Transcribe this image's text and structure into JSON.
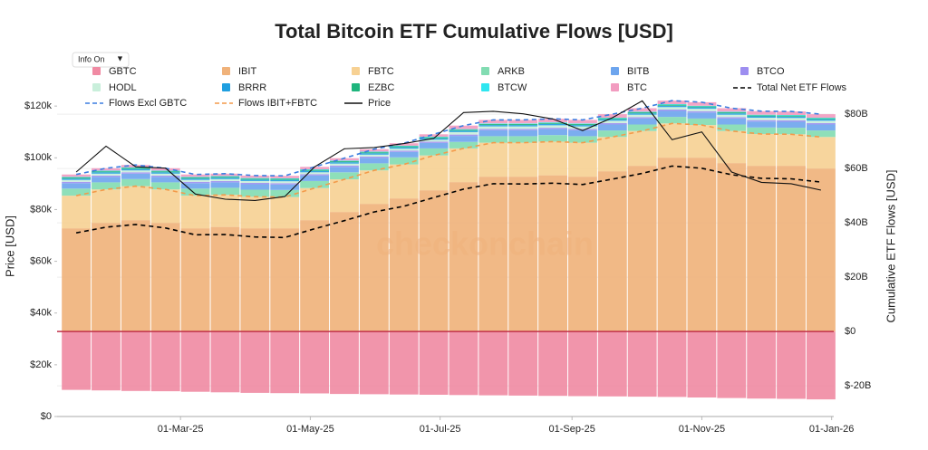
{
  "chart_data": {
    "type": "stacked-bar-line",
    "title": "Total Bitcoin ETF Cumulative Flows [USD]",
    "info_button": "Info On",
    "watermark": "checkonchain",
    "y_label": "Price [USD]",
    "y2_label": "Cumulative ETF Flows [USD]",
    "x": [
      "2025-01-11",
      "2025-01-25",
      "2025-02-08",
      "2025-02-22",
      "2025-03-08",
      "2025-03-22",
      "2025-04-05",
      "2025-04-19",
      "2025-05-03",
      "2025-05-17",
      "2025-05-31",
      "2025-06-14",
      "2025-06-28",
      "2025-07-12",
      "2025-07-26",
      "2025-08-09",
      "2025-08-23",
      "2025-09-06",
      "2025-09-20",
      "2025-10-04",
      "2025-10-18",
      "2025-11-01",
      "2025-11-15",
      "2025-11-29",
      "2025-12-13",
      "2025-12-27"
    ],
    "xlim": [
      "2025-01-02",
      "2026-01-02"
    ],
    "xticks": [
      {
        "value": "2025-03-01",
        "label": "01-Mar-25"
      },
      {
        "value": "2025-05-01",
        "label": "01-May-25"
      },
      {
        "value": "2025-07-01",
        "label": "01-Jul-25"
      },
      {
        "value": "2025-09-01",
        "label": "01-Sep-25"
      },
      {
        "value": "2025-11-01",
        "label": "01-Nov-25"
      },
      {
        "value": "2026-01-01",
        "label": "01-Jan-26"
      }
    ],
    "ylim": [
      0,
      126000
    ],
    "yticks": [
      {
        "value": 0,
        "label": "$0"
      },
      {
        "value": 20000,
        "label": "$20k"
      },
      {
        "value": 40000,
        "label": "$40k"
      },
      {
        "value": 60000,
        "label": "$60k"
      },
      {
        "value": 80000,
        "label": "$80k"
      },
      {
        "value": 100000,
        "label": "$100k"
      },
      {
        "value": 120000,
        "label": "$120k"
      }
    ],
    "y2lim": [
      -31.3,
      88.7
    ],
    "y2ticks": [
      {
        "value": -20,
        "label": "$-20B"
      },
      {
        "value": 0,
        "label": "$0"
      },
      {
        "value": 20,
        "label": "$20B"
      },
      {
        "value": 40,
        "label": "$40B"
      },
      {
        "value": 60,
        "label": "$60B"
      },
      {
        "value": 80,
        "label": "$80B"
      }
    ],
    "grid": true,
    "series": [
      {
        "name": "GBTC",
        "color": "#f08aa3",
        "kind": "bar",
        "axis": "y2",
        "values": [
          -21.5,
          -21.7,
          -21.9,
          -22.0,
          -22.2,
          -22.4,
          -22.6,
          -22.7,
          -22.8,
          -23.0,
          -23.1,
          -23.2,
          -23.3,
          -23.4,
          -23.5,
          -23.6,
          -23.7,
          -23.8,
          -23.9,
          -24.0,
          -24.1,
          -24.3,
          -24.5,
          -24.7,
          -24.8,
          -25.0
        ]
      },
      {
        "name": "IBIT",
        "color": "#f0b27a",
        "kind": "bar",
        "axis": "y2",
        "values": [
          38,
          40,
          41,
          40,
          38,
          38.5,
          38,
          38,
          41,
          44,
          47,
          49,
          52,
          55,
          57,
          57,
          57.5,
          57,
          59,
          61,
          64,
          64,
          62,
          61,
          61,
          60
        ]
      },
      {
        "name": "FBTC",
        "color": "#f7d193",
        "kind": "bar",
        "axis": "y2",
        "values": [
          12,
          12.3,
          12.5,
          12.3,
          12,
          11.8,
          11.6,
          11.5,
          11.8,
          12,
          12.3,
          12.5,
          12.8,
          12.4,
          12.5,
          12.5,
          12.4,
          12.5,
          12.6,
          12.8,
          12.6,
          12,
          11.8,
          11.7,
          11.6,
          11.6
        ]
      },
      {
        "name": "ARKB",
        "color": "#82dcb2",
        "kind": "bar",
        "axis": "y2",
        "values": [
          2.6,
          2.6,
          2.6,
          2.6,
          2.6,
          2.6,
          2.6,
          2.6,
          2.6,
          2.6,
          2.6,
          2.6,
          2.6,
          2.4,
          2.4,
          2.4,
          2.4,
          2.4,
          2.4,
          2.4,
          2.4,
          2.4,
          2.4,
          2.4,
          2.4,
          2.4
        ]
      },
      {
        "name": "BITB",
        "color": "#6da5ee",
        "kind": "bar",
        "axis": "y2",
        "values": [
          2.0,
          2.0,
          2.0,
          2.0,
          2.0,
          2.0,
          2.0,
          2.0,
          2.0,
          2.0,
          2.0,
          2.0,
          2.0,
          2.2,
          2.2,
          2.2,
          2.2,
          2.2,
          2.2,
          2.2,
          2.2,
          2.2,
          2.2,
          2.2,
          2.2,
          2.2
        ]
      },
      {
        "name": "BTCO",
        "color": "#9d8ef0",
        "kind": "bar",
        "axis": "y2",
        "values": [
          0.5,
          0.5,
          0.5,
          0.5,
          0.5,
          0.5,
          0.5,
          0.5,
          0.5,
          0.5,
          0.5,
          0.5,
          0.5,
          0.5,
          0.5,
          0.5,
          0.5,
          0.5,
          0.5,
          0.5,
          0.5,
          0.5,
          0.5,
          0.5,
          0.5,
          0.5
        ]
      },
      {
        "name": "HODL",
        "color": "#c9efdb",
        "kind": "bar",
        "axis": "y2",
        "values": [
          0.7,
          0.7,
          0.7,
          0.7,
          0.7,
          0.7,
          0.7,
          0.7,
          0.7,
          0.7,
          0.7,
          0.7,
          0.7,
          0.9,
          0.9,
          0.9,
          0.9,
          0.9,
          0.9,
          0.9,
          0.9,
          0.9,
          0.9,
          0.9,
          0.9,
          0.9
        ]
      },
      {
        "name": "BRRR",
        "color": "#1f9fe0",
        "kind": "bar",
        "axis": "y2",
        "values": [
          0.5,
          0.5,
          0.5,
          0.5,
          0.5,
          0.5,
          0.5,
          0.5,
          0.5,
          0.5,
          0.5,
          0.5,
          0.5,
          0.5,
          0.5,
          0.5,
          0.5,
          0.5,
          0.5,
          0.5,
          0.5,
          0.5,
          0.5,
          0.5,
          0.5,
          0.5
        ]
      },
      {
        "name": "EZBC",
        "color": "#1fb57d",
        "kind": "bar",
        "axis": "y2",
        "values": [
          0.4,
          0.4,
          0.4,
          0.4,
          0.4,
          0.4,
          0.4,
          0.4,
          0.4,
          0.4,
          0.4,
          0.4,
          0.4,
          0.4,
          0.4,
          0.4,
          0.4,
          0.4,
          0.4,
          0.4,
          0.4,
          0.4,
          0.4,
          0.4,
          0.4,
          0.4
        ]
      },
      {
        "name": "BTCW",
        "color": "#2fe6f0",
        "kind": "bar",
        "axis": "y2",
        "values": [
          0.2,
          0.2,
          0.2,
          0.2,
          0.2,
          0.2,
          0.2,
          0.2,
          0.2,
          0.2,
          0.2,
          0.2,
          0.2,
          0.2,
          0.2,
          0.2,
          0.2,
          0.2,
          0.2,
          0.2,
          0.2,
          0.2,
          0.2,
          0.2,
          0.2,
          0.2
        ]
      },
      {
        "name": "BTC",
        "color": "#f29cc0",
        "kind": "bar",
        "axis": "y2",
        "values": [
          0.9,
          0.9,
          0.9,
          0.9,
          0.9,
          0.9,
          0.9,
          0.9,
          0.9,
          0.9,
          0.9,
          0.9,
          0.9,
          1.3,
          1.3,
          1.3,
          1.3,
          1.3,
          1.3,
          1.3,
          1.3,
          1.3,
          1.3,
          1.3,
          1.3,
          1.3
        ]
      },
      {
        "name": "Total Net ETF Flows",
        "color": "#000000",
        "kind": "line",
        "dash": true,
        "axis": "y2",
        "values": [
          36.3,
          38.4,
          39.4,
          38.1,
          35.6,
          35.7,
          34.8,
          34.6,
          37.8,
          40.8,
          44,
          46.1,
          49.3,
          52.4,
          54.4,
          54.3,
          54.6,
          54.1,
          56.1,
          58.2,
          60.9,
          60.1,
          57.7,
          56.4,
          56.2,
          55
        ]
      },
      {
        "name": "Flows Excl GBTC",
        "color": "#3b7de0",
        "kind": "line",
        "dash": true,
        "axis": "y2",
        "values": [
          57.8,
          60.1,
          61.3,
          60.1,
          57.8,
          58.1,
          57.4,
          57.3,
          60.6,
          63.8,
          67.1,
          69.3,
          72.6,
          75.8,
          77.9,
          77.9,
          78.3,
          77.9,
          80,
          82.2,
          85,
          84.4,
          82.2,
          81.1,
          81,
          80
        ]
      },
      {
        "name": "Flows IBIT+FBTC",
        "color": "#f39a4a",
        "kind": "line",
        "dash": true,
        "axis": "y2",
        "values": [
          50,
          52.3,
          53.5,
          52.3,
          50,
          50.3,
          49.6,
          49.5,
          52.8,
          56,
          59.3,
          61.5,
          64.8,
          67.4,
          69.5,
          69.5,
          69.9,
          69.5,
          71.6,
          73.8,
          76.6,
          76,
          73.8,
          72.7,
          72.6,
          71.6
        ]
      },
      {
        "name": "Price",
        "color": "#111111",
        "kind": "line",
        "dash": false,
        "values": [
          94500,
          104500,
          96500,
          96000,
          86000,
          84000,
          83500,
          85000,
          96500,
          103500,
          104000,
          105500,
          107500,
          117500,
          118000,
          117000,
          115000,
          110500,
          115500,
          122000,
          107000,
          110000,
          94500,
          90500,
          90000,
          87500
        ]
      }
    ]
  }
}
